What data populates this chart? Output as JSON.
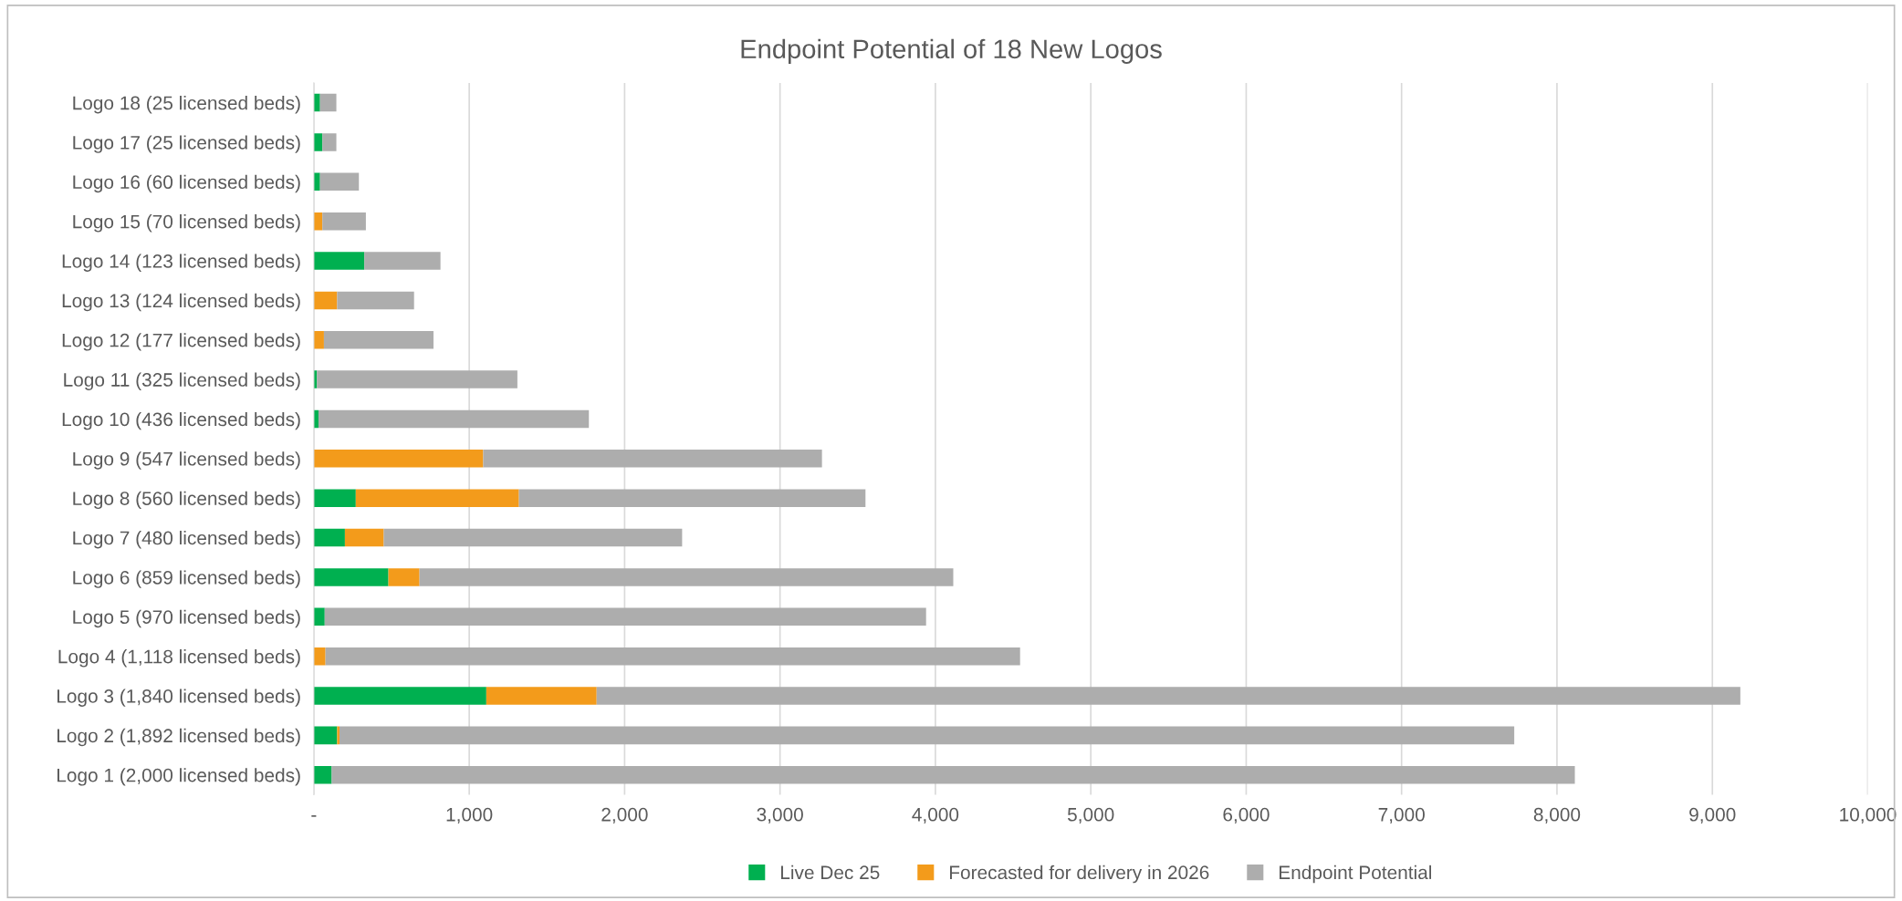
{
  "chart_data": {
    "type": "bar",
    "orientation": "horizontal",
    "stacked": true,
    "title": "Endpoint Potential of 18 New Logos",
    "categories": [
      "Logo 18 (25 licensed beds)",
      "Logo 17 (25 licensed beds)",
      "Logo 16 (60 licensed beds)",
      "Logo 15 (70 licensed beds)",
      "Logo 14 (123 licensed beds)",
      "Logo 13 (124 licensed beds)",
      "Logo 12 (177 licensed beds)",
      "Logo 11 (325 licensed beds)",
      "Logo 10 (436 licensed beds)",
      "Logo 9 (547 licensed beds)",
      "Logo 8 (560 licensed beds)",
      "Logo 7 (480 licensed beds)",
      "Logo 6 (859 licensed beds)",
      "Logo 5 (970 licensed beds)",
      "Logo 4 (1,118 licensed beds)",
      "Logo 3 (1,840 licensed beds)",
      "Logo 2 (1,892 licensed beds)",
      "Logo 1 (2,000 licensed beds)"
    ],
    "series": [
      {
        "name": "Live Dec 25",
        "color": "#00b050",
        "values": [
          40,
          55,
          40,
          0,
          325,
          0,
          0,
          20,
          30,
          0,
          270,
          200,
          480,
          70,
          0,
          1110,
          150,
          115
        ]
      },
      {
        "name": "Forecasted for delivery in 2026",
        "color": "#f39b1b",
        "values": [
          0,
          0,
          0,
          55,
          0,
          150,
          65,
          0,
          0,
          1090,
          1050,
          250,
          200,
          0,
          75,
          710,
          15,
          0
        ]
      },
      {
        "name": "Endpoint Potential",
        "color": "#adadad",
        "values": [
          105,
          90,
          250,
          280,
          490,
          495,
          705,
          1290,
          1740,
          2180,
          2230,
          1920,
          3435,
          3870,
          4470,
          7360,
          7560,
          8000
        ]
      }
    ],
    "xlim": [
      0,
      10000
    ],
    "xticks": [
      {
        "value": 0,
        "label": "-"
      },
      {
        "value": 1000,
        "label": "1,000"
      },
      {
        "value": 2000,
        "label": "2,000"
      },
      {
        "value": 3000,
        "label": "3,000"
      },
      {
        "value": 4000,
        "label": "4,000"
      },
      {
        "value": 5000,
        "label": "5,000"
      },
      {
        "value": 6000,
        "label": "6,000"
      },
      {
        "value": 7000,
        "label": "7,000"
      },
      {
        "value": 8000,
        "label": "8,000"
      },
      {
        "value": 9000,
        "label": "9,000"
      },
      {
        "value": 10000,
        "label": "10,000"
      }
    ],
    "grid": "x",
    "legend": "bottom"
  }
}
